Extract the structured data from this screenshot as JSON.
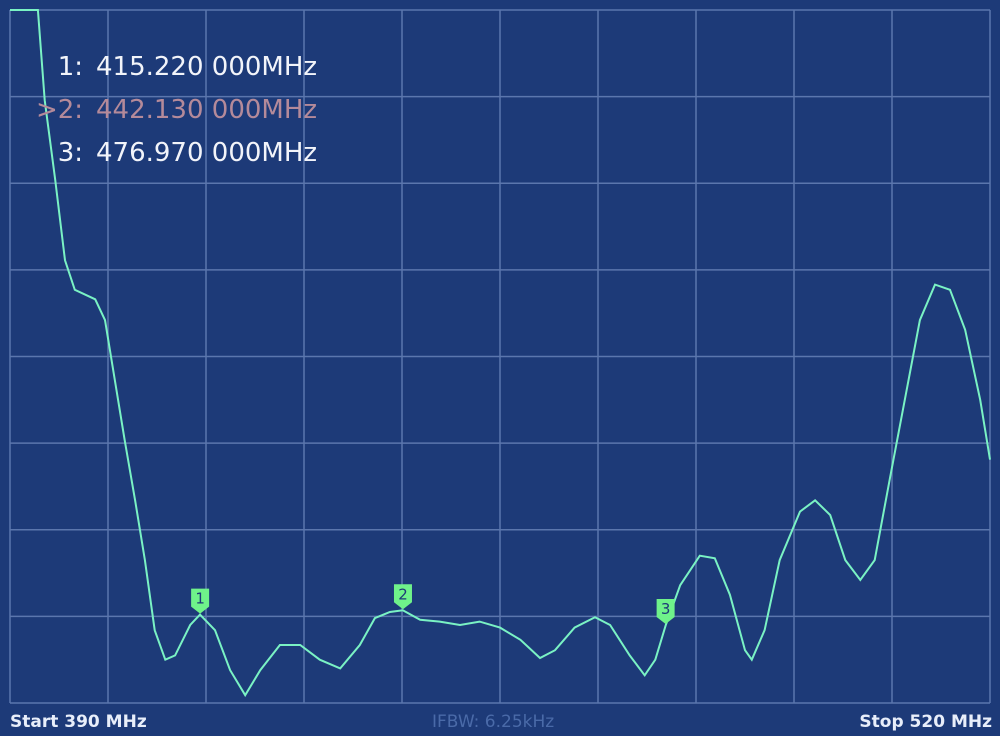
{
  "markers": [
    {
      "label": "1:",
      "freq": "415.220 000MHz",
      "active": false,
      "value_mhz": 415.22
    },
    {
      "label": ">2:",
      "freq": "442.130 000MHz",
      "active": true,
      "value_mhz": 442.13
    },
    {
      "label": "3:",
      "freq": "476.970 000MHz",
      "active": false,
      "value_mhz": 476.97
    }
  ],
  "footer": {
    "start": "Start  390 MHz",
    "stop": "Stop  520 MHz",
    "ifbw": "IFBW: 6.25kHz"
  },
  "colors": {
    "background": "#1d3a78",
    "grid": "#5b76ad",
    "trace": "#7af2c4",
    "marker_flag": "#6ff28a",
    "active_marker_text": "#b48a9a"
  },
  "chart_data": {
    "type": "line",
    "title": "",
    "xlabel": "",
    "ylabel": "",
    "xlim": [
      390,
      520
    ],
    "ylim": [
      0,
      8
    ],
    "x_divisions": 10,
    "y_divisions": 8,
    "grid": true,
    "series": [
      {
        "x": [
          390.0,
          393.7,
          394.6,
          396.0,
          397.3,
          398.6,
          401.3,
          402.6,
          403.9,
          405.2,
          406.6,
          407.9,
          409.2,
          410.6,
          411.9,
          413.9,
          415.2,
          417.2,
          419.2,
          421.2,
          423.2,
          425.8,
          428.5,
          431.1,
          433.8,
          436.4,
          438.4,
          440.4,
          442.1,
          444.4,
          447.0,
          449.7,
          452.3,
          455.0,
          457.7,
          460.3,
          462.3,
          464.9,
          467.6,
          469.6,
          472.2,
          474.2,
          475.6,
          477.0,
          478.9,
          481.5,
          483.5,
          485.5,
          487.5,
          488.4,
          490.1,
          492.1,
          494.8,
          496.8,
          498.8,
          500.8,
          502.8,
          504.7,
          506.7,
          508.7,
          510.7,
          512.7,
          514.7,
          516.7,
          518.7,
          520.0
        ],
        "y": [
          8.0,
          8.0,
          6.96,
          6.04,
          5.11,
          4.77,
          4.66,
          4.42,
          3.73,
          3.04,
          2.34,
          1.65,
          0.84,
          0.5,
          0.55,
          0.9,
          1.02,
          0.84,
          0.38,
          0.09,
          0.38,
          0.67,
          0.67,
          0.5,
          0.4,
          0.67,
          0.98,
          1.05,
          1.07,
          0.96,
          0.94,
          0.9,
          0.94,
          0.87,
          0.73,
          0.52,
          0.61,
          0.87,
          0.99,
          0.9,
          0.55,
          0.32,
          0.5,
          0.9,
          1.36,
          1.7,
          1.67,
          1.25,
          0.61,
          0.5,
          0.84,
          1.65,
          2.21,
          2.34,
          2.17,
          1.65,
          1.42,
          1.65,
          2.58,
          3.5,
          4.42,
          4.83,
          4.77,
          4.31,
          3.5,
          2.81
        ]
      }
    ],
    "marker_points": [
      {
        "id": "1",
        "x": 415.22,
        "y": 1.02
      },
      {
        "id": "2",
        "x": 442.13,
        "y": 1.07
      },
      {
        "id": "3",
        "x": 476.97,
        "y": 0.9
      }
    ]
  }
}
